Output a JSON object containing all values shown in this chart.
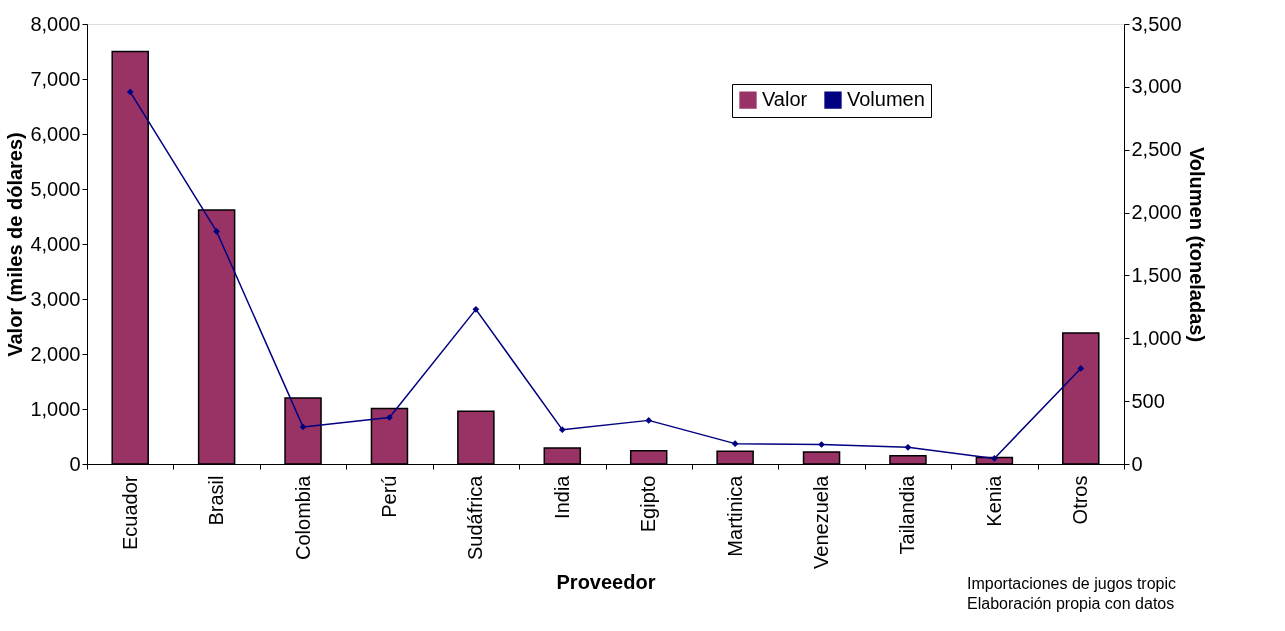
{
  "chart_data": {
    "type": "bar",
    "xlabel": "Proveedor",
    "ylabel": "Valor (miles de dólares)",
    "y2label": "Volumen (toneladas)",
    "categories": [
      "Ecuador",
      "Brasil",
      "Colombia",
      "Perú",
      "Sudáfrica",
      "India",
      "Egipto",
      "Martinica",
      "Venezuela",
      "Tailandia",
      "Kenia",
      "Otros"
    ],
    "series": [
      {
        "name": "Valor",
        "color": "#993366",
        "values": [
          7500,
          4620,
          1200,
          1010,
          960,
          290,
          240,
          230,
          220,
          150,
          120,
          2380
        ]
      },
      {
        "name": "Volumen",
        "type": "line",
        "axis": "y2",
        "color": "#000080",
        "marker": "diamond",
        "values": [
          2960,
          1850,
          295,
          370,
          1230,
          273,
          347,
          162,
          155,
          133,
          44,
          760
        ]
      }
    ],
    "ylim": [
      0,
      8000
    ],
    "yticks": [
      0,
      {
        "value": 1000,
        "label": "1,000"
      },
      {
        "value": 2000,
        "label": "2,000"
      },
      {
        "value": 3000,
        "label": "3,000"
      },
      {
        "value": 4000,
        "label": "4,000"
      },
      {
        "value": 5000,
        "label": "5,000"
      },
      {
        "value": 6000,
        "label": "6,000"
      },
      {
        "value": 7000,
        "label": "7,000"
      },
      {
        "value": 8000,
        "label": "8,000"
      }
    ],
    "y2lim": [
      0,
      3500
    ],
    "y2ticks": [
      0,
      500,
      {
        "value": 1000,
        "label": "1,000"
      },
      {
        "value": 1500,
        "label": "1,500"
      },
      {
        "value": 2000,
        "label": "2,000"
      },
      {
        "value": 2500,
        "label": "2,500"
      },
      {
        "value": 3000,
        "label": "3,000"
      },
      {
        "value": 3500,
        "label": "3,500"
      }
    ],
    "grid": false,
    "legend": "top right",
    "annotations": [
      "Importaciones de jugos tropic",
      "Elaboración propia con datos"
    ]
  }
}
